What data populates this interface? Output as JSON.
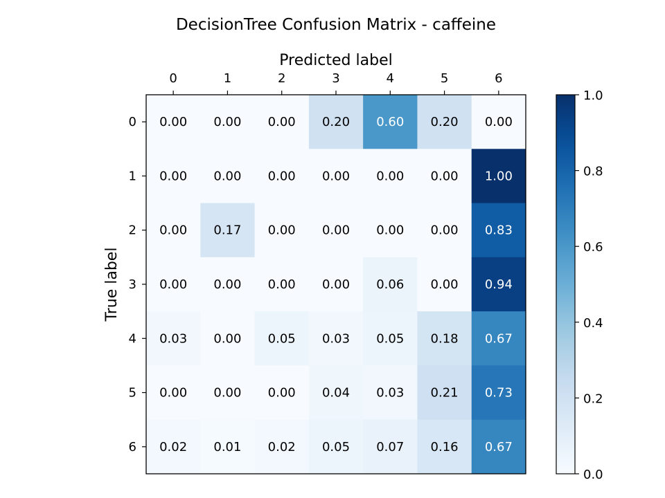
{
  "chart_data": {
    "type": "heatmap",
    "title": "DecisionTree Confusion Matrix - caffeine",
    "xlabel": "Predicted label",
    "ylabel": "True label",
    "x_categories": [
      "0",
      "1",
      "2",
      "3",
      "4",
      "5",
      "6"
    ],
    "y_categories": [
      "0",
      "1",
      "2",
      "3",
      "4",
      "5",
      "6"
    ],
    "values": [
      [
        0.0,
        0.0,
        0.0,
        0.2,
        0.6,
        0.2,
        0.0
      ],
      [
        0.0,
        0.0,
        0.0,
        0.0,
        0.0,
        0.0,
        1.0
      ],
      [
        0.0,
        0.17,
        0.0,
        0.0,
        0.0,
        0.0,
        0.83
      ],
      [
        0.0,
        0.0,
        0.0,
        0.0,
        0.06,
        0.0,
        0.94
      ],
      [
        0.03,
        0.0,
        0.05,
        0.03,
        0.05,
        0.18,
        0.67
      ],
      [
        0.0,
        0.0,
        0.0,
        0.04,
        0.03,
        0.21,
        0.73
      ],
      [
        0.02,
        0.01,
        0.02,
        0.05,
        0.07,
        0.16,
        0.67
      ]
    ],
    "value_range": [
      0.0,
      1.0
    ],
    "colormap": "Blues",
    "colorbar_ticks": [
      "0.0",
      "0.2",
      "0.4",
      "0.6",
      "0.8",
      "1.0"
    ],
    "cell_label_format": "2-decimal",
    "x_axis_position": "top"
  }
}
